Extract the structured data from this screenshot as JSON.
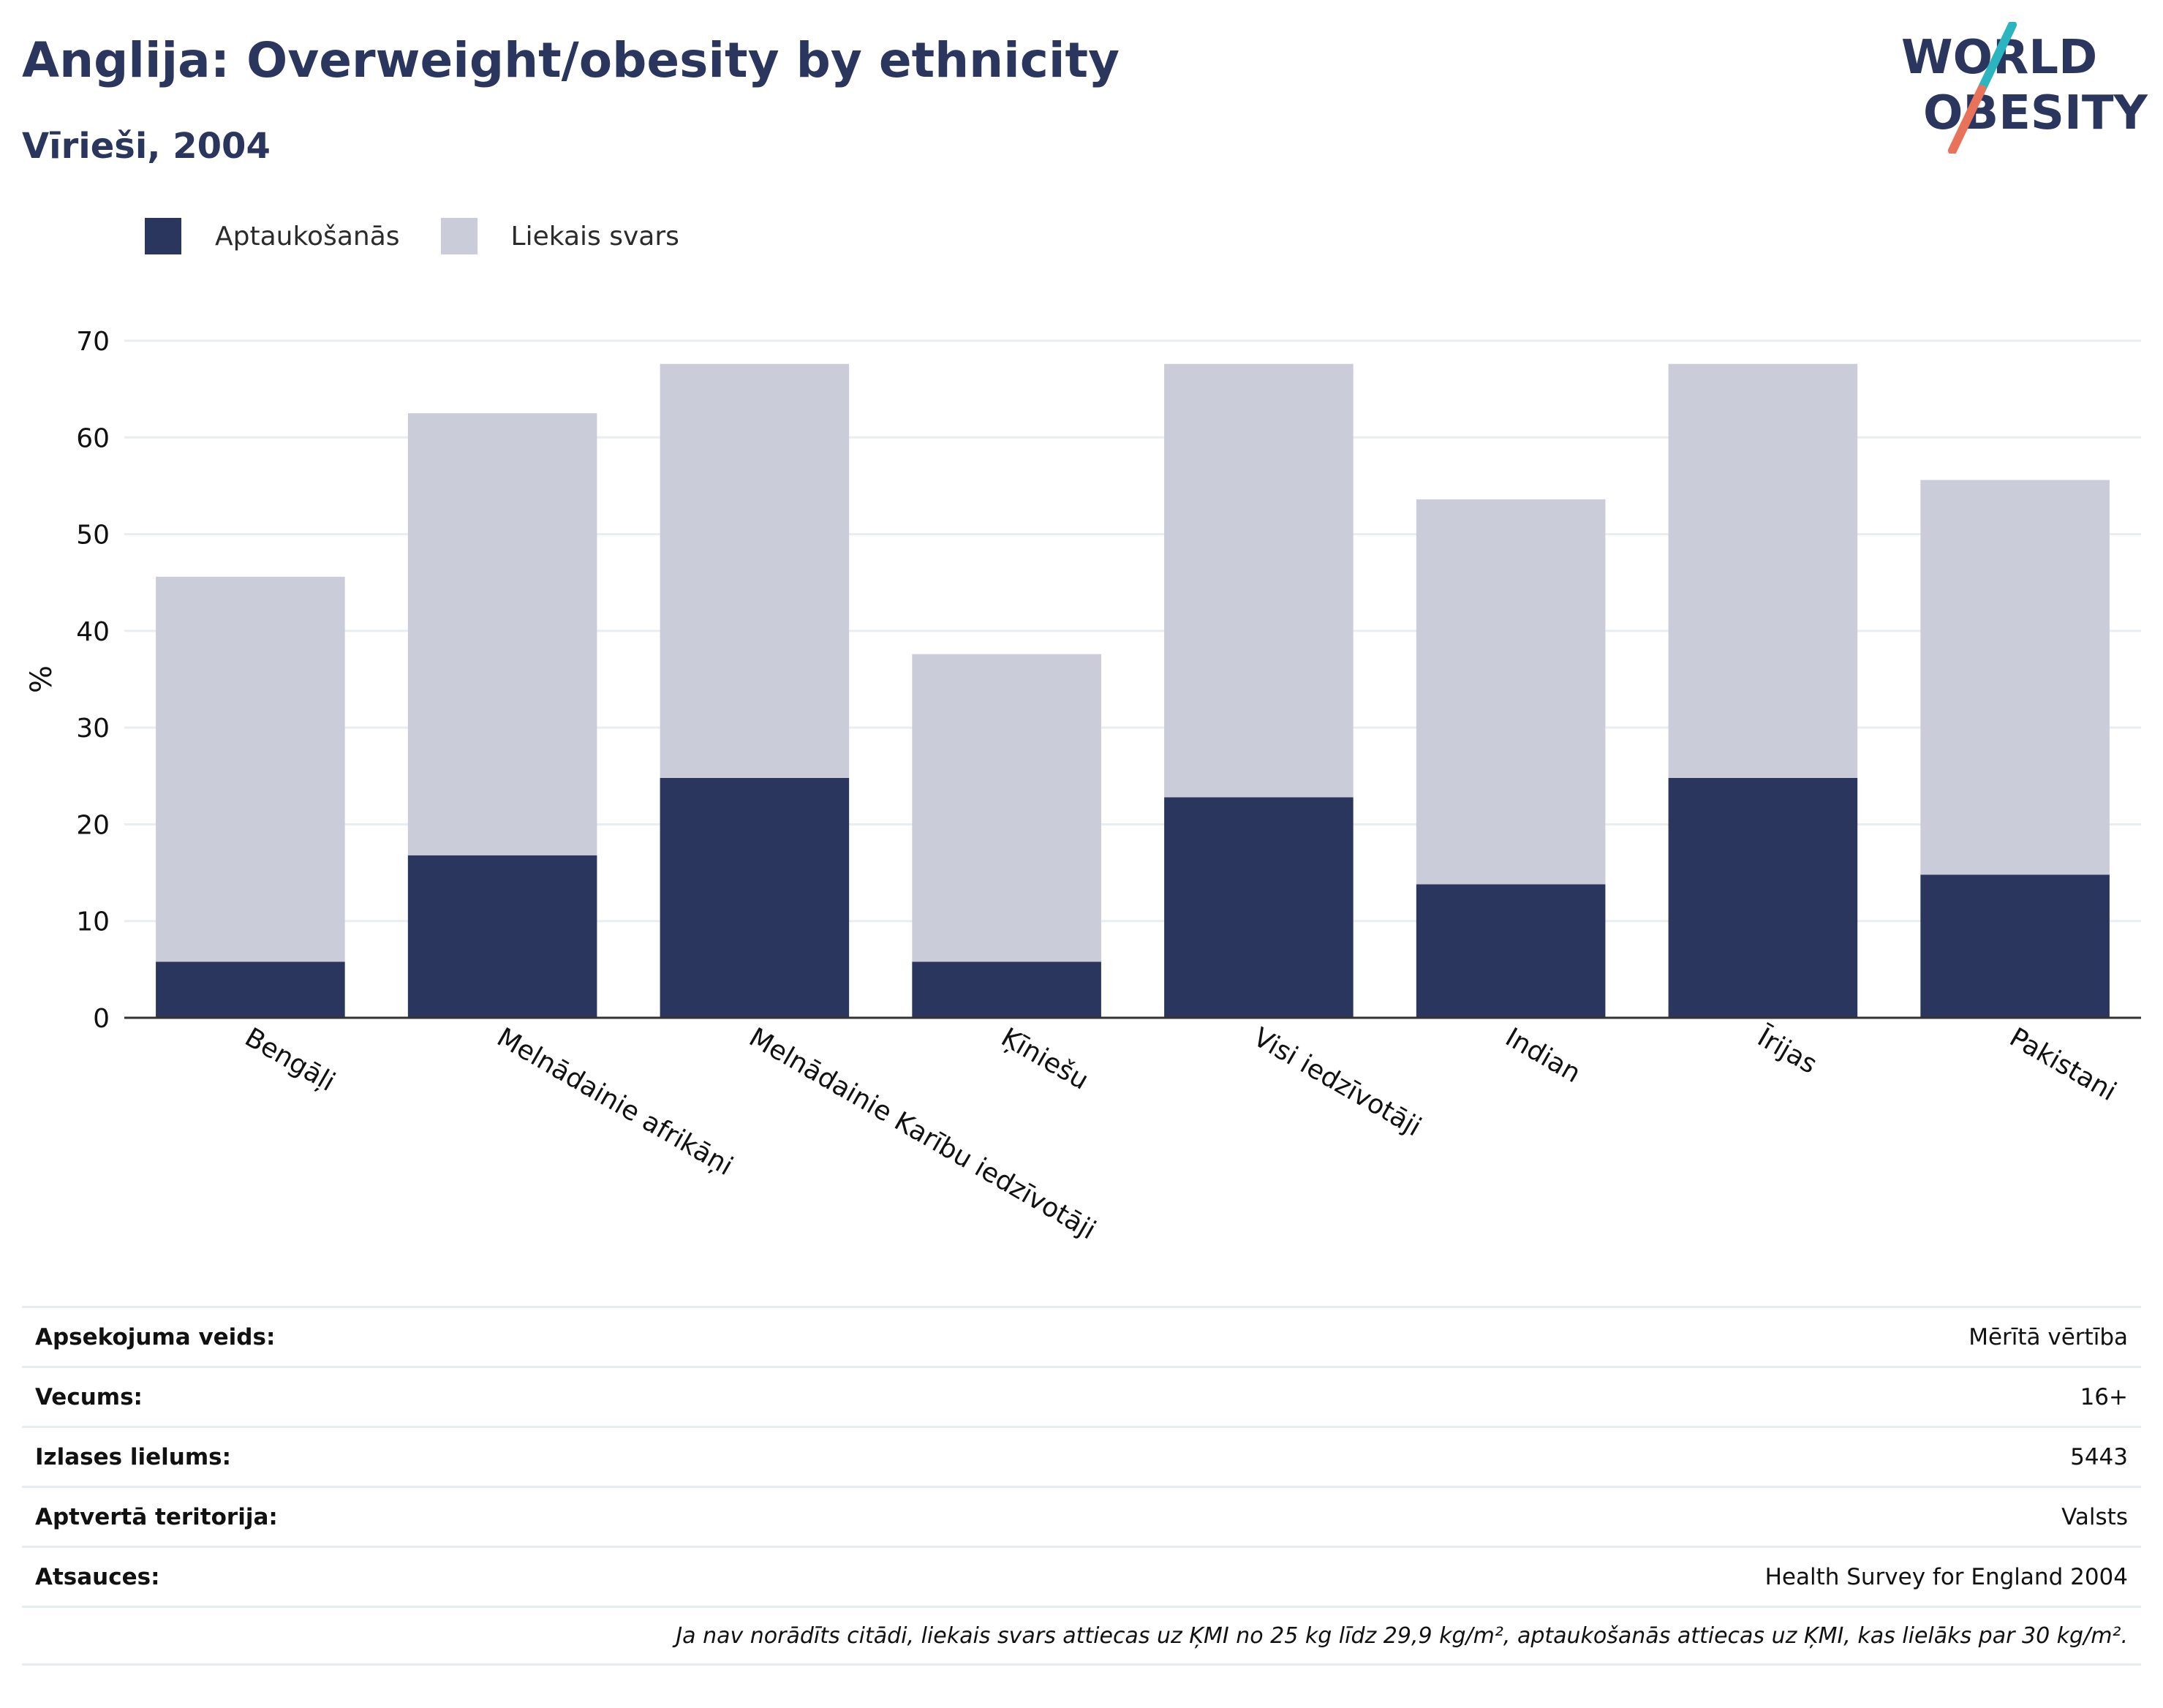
{
  "header": {
    "title": "Anglija: Overweight/obesity by ethnicity",
    "subtitle": "Vīrieši, 2004"
  },
  "logo": {
    "line1": "WORLD",
    "line2": "OBESITY",
    "accent_teal": "#2bb5c0",
    "accent_coral": "#e8735a"
  },
  "colors": {
    "obesity": "#2b365e",
    "overweight": "#cbccda",
    "grid": "#e8edf1",
    "axis": "#333333"
  },
  "chart_data": {
    "type": "bar",
    "stacked": true,
    "ylabel": "%",
    "ylim": [
      0,
      70
    ],
    "yticks": [
      0,
      10,
      20,
      30,
      40,
      50,
      60,
      70
    ],
    "grid": true,
    "legend_position": "top-left",
    "categories": [
      "Bengāļi",
      "Melnādainie afrikāņi",
      "Melnādainie Karību iedzīvotāji",
      "Ķīniešu",
      "Visi iedzīvotāji",
      "Indian",
      "Īrijas",
      "Pakistani"
    ],
    "series": [
      {
        "name": "Aptaukošanās",
        "values": [
          5.8,
          16.8,
          24.8,
          5.8,
          22.8,
          13.8,
          24.8,
          14.8
        ]
      },
      {
        "name": "Liekais svars",
        "values": [
          39.8,
          45.7,
          42.8,
          31.8,
          44.8,
          39.8,
          42.8,
          40.8
        ]
      }
    ]
  },
  "meta": {
    "rows": [
      {
        "key": "Apsekojuma veids:",
        "value": "Mērītā vērtība"
      },
      {
        "key": "Vecums:",
        "value": "16+"
      },
      {
        "key": "Izlases lielums:",
        "value": "5443"
      },
      {
        "key": "Aptvertā teritorija:",
        "value": "Valsts"
      },
      {
        "key": "Atsauces:",
        "value": "Health Survey for England 2004"
      }
    ],
    "note": "Ja nav norādīts citādi, liekais svars attiecas uz ĶMI no 25 kg līdz 29,9 kg/m², aptaukošanās attiecas uz ĶMI, kas lielāks par 30 kg/m²."
  }
}
